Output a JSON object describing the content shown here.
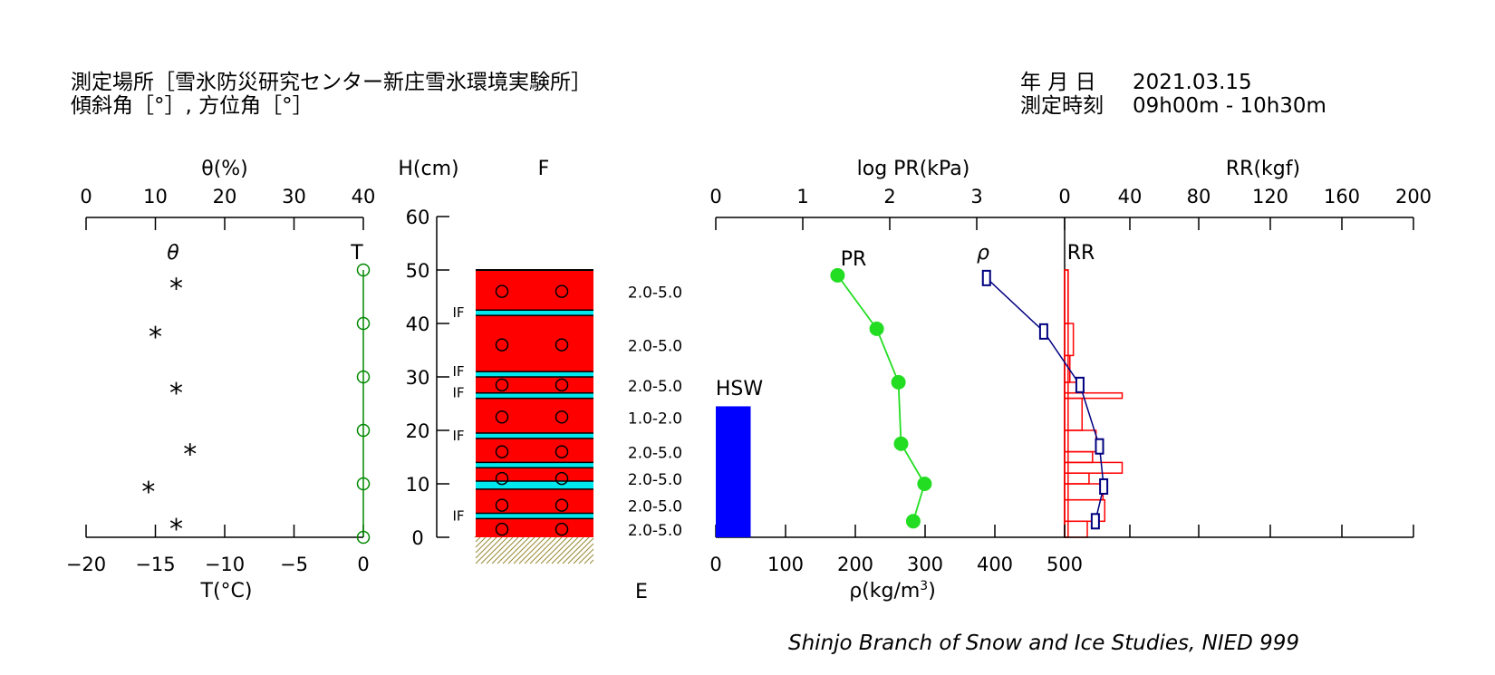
{
  "header": {
    "location_label": "測定場所［雪氷防災研究センター新庄雪氷環境実験所］",
    "slope_label": "傾斜角［°］, 方位角［°］",
    "date_label": "年 月 日",
    "date_value": "2021.03.15",
    "time_label": "測定時刻",
    "time_value": "09h00m - 10h30m"
  },
  "credit": "Shinjo Branch of Snow and Ice Studies, NIED 999",
  "colors": {
    "snow_layer": "#ff0000",
    "ice_layer": "#00e8ee",
    "temperature": "#008800",
    "pr": "#22dd22",
    "density": "#000080",
    "rr": "#ff0000",
    "hsw": "#0000ff",
    "ground_hatch": "#998833"
  },
  "chart_data": [
    {
      "type": "scatter",
      "id": "theta",
      "xlabel": "θ(%)",
      "xlim": [
        0,
        40
      ],
      "xticks": [
        0,
        10,
        20,
        30,
        40
      ],
      "series_label": "θ",
      "points": [
        [
          13,
          47
        ],
        [
          10,
          38
        ],
        [
          13,
          27.5
        ],
        [
          15,
          16
        ],
        [
          9,
          9
        ],
        [
          13,
          2
        ]
      ]
    },
    {
      "type": "line",
      "id": "temperature",
      "xlabel": "T(°C)",
      "xlim": [
        -20,
        0
      ],
      "xticks": [
        -20,
        -15,
        -10,
        -5,
        0
      ],
      "xtick_labels": [
        "−20",
        "−15",
        "−10",
        "−5",
        "0"
      ],
      "series_label": "T",
      "points": [
        [
          0,
          50
        ],
        [
          0,
          40
        ],
        [
          0,
          30
        ],
        [
          0,
          20
        ],
        [
          0,
          10
        ],
        [
          0,
          0
        ]
      ]
    },
    {
      "type": "profile",
      "id": "stratigraphy",
      "ylabel": "H(cm)",
      "ylim": [
        0,
        60
      ],
      "yticks": [
        0,
        10,
        20,
        30,
        40,
        50,
        60
      ],
      "top_label": "F",
      "bottom_label": "E",
      "snow_depth": 50,
      "ice_layers": [
        [
          41.5,
          42.5
        ],
        [
          30,
          31
        ],
        [
          26,
          27
        ],
        [
          18.5,
          19.5
        ],
        [
          13,
          14
        ],
        [
          9,
          10.5
        ],
        [
          3.5,
          4.5
        ]
      ],
      "layer_boundaries": [
        42.5,
        41.5,
        31,
        30,
        27,
        26,
        19.5,
        18.5,
        14,
        13,
        10.5,
        9,
        4.5,
        3.5
      ],
      "grain_symbol_heights": [
        46,
        36,
        28.5,
        22.5,
        16,
        11,
        6,
        1.5
      ],
      "if_labels": [
        {
          "text": "IF",
          "h": 42
        },
        {
          "text": "IF",
          "h": 31
        },
        {
          "text": "IF",
          "h": 27
        },
        {
          "text": "IF",
          "h": 19
        },
        {
          "text": "IF",
          "h": 4
        }
      ],
      "grain_sizes": [
        {
          "text": "2.0-5.0",
          "h": 46
        },
        {
          "text": "2.0-5.0",
          "h": 36
        },
        {
          "text": "2.0-5.0",
          "h": 28.5
        },
        {
          "text": "1.0-2.0",
          "h": 22.5
        },
        {
          "text": "2.0-5.0",
          "h": 16
        },
        {
          "text": "2.0-5.0",
          "h": 11
        },
        {
          "text": "2.0-5.0",
          "h": 6
        },
        {
          "text": "2.0-5.0",
          "h": 1.5
        }
      ]
    },
    {
      "type": "line",
      "id": "pr",
      "xlabel": "log PR(kPa)",
      "xlim": [
        0,
        4
      ],
      "xticks": [
        0,
        1,
        2,
        3
      ],
      "series_label": "PR",
      "points": [
        [
          1.4,
          49
        ],
        [
          1.85,
          39
        ],
        [
          2.1,
          29
        ],
        [
          2.13,
          17.5
        ],
        [
          2.4,
          10
        ],
        [
          2.27,
          3
        ]
      ]
    },
    {
      "type": "line",
      "id": "density",
      "xlabel": "ρ(kg/m3)",
      "xlim": [
        0,
        500
      ],
      "xticks": [
        0,
        100,
        200,
        300,
        400,
        500
      ],
      "series_label": "ρ",
      "points": [
        [
          388,
          48.5
        ],
        [
          470,
          38.5
        ],
        [
          522,
          28.5
        ],
        [
          550,
          17
        ],
        [
          556,
          9.5
        ],
        [
          544,
          3
        ]
      ]
    },
    {
      "type": "bar",
      "id": "hsw",
      "series_label": "HSW",
      "xlim": [
        0,
        500
      ],
      "value": 50,
      "height": 24.5
    },
    {
      "type": "bar",
      "id": "rr",
      "xlabel": "RR(kgf)",
      "xlim": [
        0,
        200
      ],
      "xticks": [
        0,
        40,
        80,
        120,
        160,
        200
      ],
      "series_label": "RR",
      "bars": [
        [
          0,
          50,
          2
        ],
        [
          40,
          50,
          2
        ],
        [
          34,
          40,
          5
        ],
        [
          29,
          34,
          3
        ],
        [
          27,
          29,
          9
        ],
        [
          26,
          27,
          33
        ],
        [
          20,
          26,
          10
        ],
        [
          16,
          20,
          18
        ],
        [
          14,
          16,
          16
        ],
        [
          12,
          14,
          33
        ],
        [
          10,
          12,
          14
        ],
        [
          7,
          10,
          22
        ],
        [
          3,
          7,
          23
        ],
        [
          0,
          3,
          13
        ]
      ]
    }
  ]
}
